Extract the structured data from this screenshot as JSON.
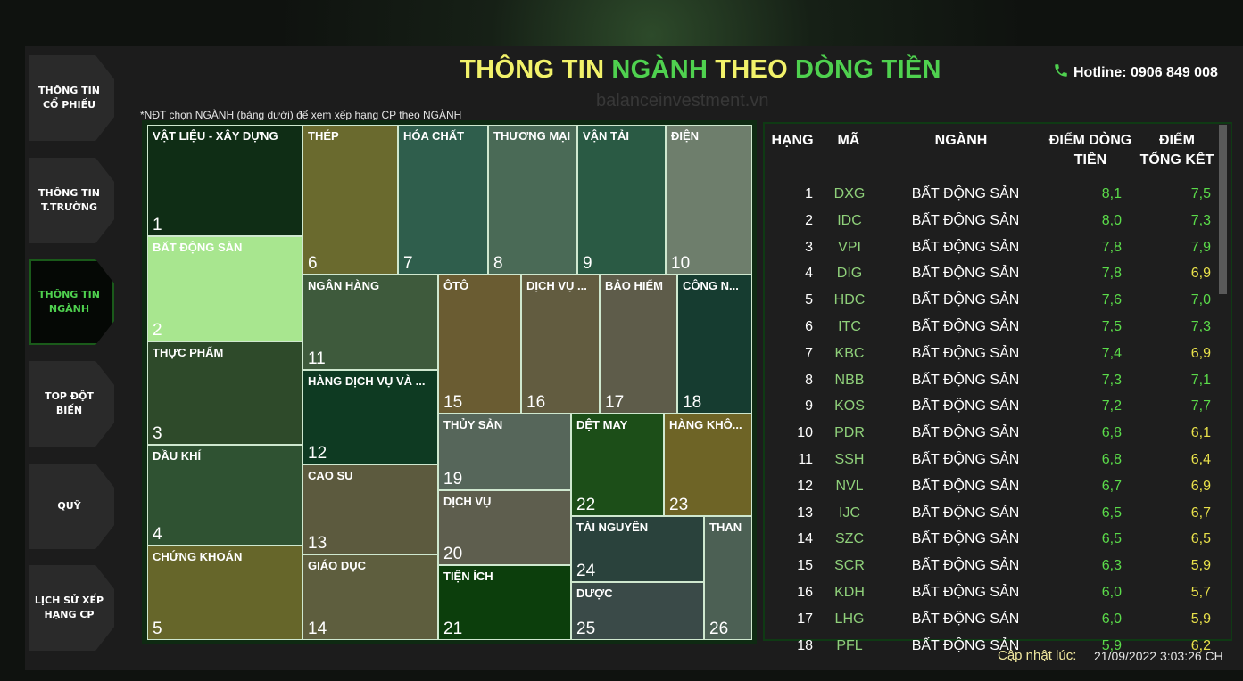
{
  "header": {
    "title_parts": [
      {
        "text": "THÔNG TIN",
        "color": "#f2f26a"
      },
      {
        "text": "NGÀNH",
        "color": "#4fd14f"
      },
      {
        "text": "THEO",
        "color": "#f2f26a"
      },
      {
        "text": "DÒNG TIỀN",
        "color": "#4fd14f"
      }
    ],
    "hotline": "Hotline: 0906 849 008",
    "watermark": "balanceinvestment.vn"
  },
  "sidebar": {
    "items": [
      {
        "label": "THÔNG TIN CỔ PHIẾU",
        "active": false
      },
      {
        "label": "THÔNG TIN T.TRƯỜNG",
        "active": false
      },
      {
        "label": "THÔNG TIN NGÀNH",
        "active": true
      },
      {
        "label": "TOP ĐỘT BIẾN",
        "active": false
      },
      {
        "label": "QUỸ",
        "active": false
      },
      {
        "label": "LỊCH SỬ XẾP HẠNG CP",
        "active": false
      }
    ]
  },
  "note": "*NĐT chọn NGÀNH (bảng dưới) để xem xếp hạng CP theo NGÀNH",
  "treemap": {
    "tiles": [
      {
        "label": "VẬT LIỆU - XÂY DỰNG",
        "rank": 1,
        "color": "#0f2d15"
      },
      {
        "label": "BẤT ĐỘNG SẢN",
        "rank": 2,
        "color": "#a8e68f"
      },
      {
        "label": "THỰC PHẨM",
        "rank": 3,
        "color": "#2e4a2a"
      },
      {
        "label": "DẦU KHÍ",
        "rank": 4,
        "color": "#2f5232"
      },
      {
        "label": "CHỨNG KHOÁN",
        "rank": 5,
        "color": "#66662a"
      },
      {
        "label": "THÉP",
        "rank": 6,
        "color": "#6a6a2e"
      },
      {
        "label": "HÓA CHẤT",
        "rank": 7,
        "color": "#2f5e4c"
      },
      {
        "label": "THƯƠNG MẠI",
        "rank": 8,
        "color": "#4a6a56"
      },
      {
        "label": "VẬN TẢI",
        "rank": 9,
        "color": "#2a5a44"
      },
      {
        "label": "ĐIỆN",
        "rank": 10,
        "color": "#6e7e6c"
      },
      {
        "label": "NGÂN HÀNG",
        "rank": 11,
        "color": "#3e5a3c"
      },
      {
        "label": "HÀNG DỊCH VỤ VÀ ...",
        "rank": 12,
        "color": "#0e3a22"
      },
      {
        "label": "CAO SU",
        "rank": 13,
        "color": "#5c5a3e"
      },
      {
        "label": "GIÁO DỤC",
        "rank": 14,
        "color": "#5e5e3e"
      },
      {
        "label": "ÔTÔ",
        "rank": 15,
        "color": "#6a5c32"
      },
      {
        "label": "DỊCH VỤ ...",
        "rank": 16,
        "color": "#625c40"
      },
      {
        "label": "BẢO HIỂM",
        "rank": 17,
        "color": "#5e5c4a"
      },
      {
        "label": "CÔNG N...",
        "rank": 18,
        "color": "#163c30"
      },
      {
        "label": "THỦY SẢN",
        "rank": 19,
        "color": "#56665a"
      },
      {
        "label": "DỊCH VỤ",
        "rank": 20,
        "color": "#5e5e4e"
      },
      {
        "label": "TIỆN ÍCH",
        "rank": 21,
        "color": "#0c3e0c"
      },
      {
        "label": "DỆT MAY",
        "rank": 22,
        "color": "#1c4e18"
      },
      {
        "label": "HÀNG KHÔ...",
        "rank": 23,
        "color": "#6e6426"
      },
      {
        "label": "TÀI NGUYÊN",
        "rank": 24,
        "color": "#2a423c"
      },
      {
        "label": "DƯỢC",
        "rank": 25,
        "color": "#3a4a48"
      },
      {
        "label": "THAN",
        "rank": 26,
        "color": "#4c6054"
      }
    ]
  },
  "table": {
    "columns": [
      "HẠNG",
      "MÃ",
      "NGÀNH",
      "ĐIỂM DÒNG TIỀN",
      "ĐIỂM TỔNG KẾT"
    ],
    "rows": [
      {
        "rank": "1",
        "code": "DXG",
        "sector": "BẤT ĐỘNG SẢN",
        "flow": "8,1",
        "total": "7,5",
        "total_color": "#5bdc4a"
      },
      {
        "rank": "2",
        "code": "IDC",
        "sector": "BẤT ĐỘNG SẢN",
        "flow": "8,0",
        "total": "7,3",
        "total_color": "#5bdc4a"
      },
      {
        "rank": "3",
        "code": "VPI",
        "sector": "BẤT ĐỘNG SẢN",
        "flow": "7,8",
        "total": "7,9",
        "total_color": "#5bdc4a"
      },
      {
        "rank": "4",
        "code": "DIG",
        "sector": "BẤT ĐỘNG SẢN",
        "flow": "7,8",
        "total": "6,9",
        "total_color": "#e8e04a"
      },
      {
        "rank": "5",
        "code": "HDC",
        "sector": "BẤT ĐỘNG SẢN",
        "flow": "7,6",
        "total": "7,0",
        "total_color": "#5bdc4a"
      },
      {
        "rank": "6",
        "code": "ITC",
        "sector": "BẤT ĐỘNG SẢN",
        "flow": "7,5",
        "total": "7,3",
        "total_color": "#5bdc4a"
      },
      {
        "rank": "7",
        "code": "KBC",
        "sector": "BẤT ĐỘNG SẢN",
        "flow": "7,4",
        "total": "6,9",
        "total_color": "#e8e04a"
      },
      {
        "rank": "8",
        "code": "NBB",
        "sector": "BẤT ĐỘNG SẢN",
        "flow": "7,3",
        "total": "7,1",
        "total_color": "#5bdc4a"
      },
      {
        "rank": "9",
        "code": "KOS",
        "sector": "BẤT ĐỘNG SẢN",
        "flow": "7,2",
        "total": "7,7",
        "total_color": "#5bdc4a"
      },
      {
        "rank": "10",
        "code": "PDR",
        "sector": "BẤT ĐỘNG SẢN",
        "flow": "6,8",
        "total": "6,1",
        "total_color": "#e8e04a"
      },
      {
        "rank": "11",
        "code": "SSH",
        "sector": "BẤT ĐỘNG SẢN",
        "flow": "6,8",
        "total": "6,4",
        "total_color": "#e8e04a"
      },
      {
        "rank": "12",
        "code": "NVL",
        "sector": "BẤT ĐỘNG SẢN",
        "flow": "6,7",
        "total": "6,9",
        "total_color": "#e8e04a"
      },
      {
        "rank": "13",
        "code": "IJC",
        "sector": "BẤT ĐỘNG SẢN",
        "flow": "6,5",
        "total": "6,7",
        "total_color": "#e8e04a"
      },
      {
        "rank": "14",
        "code": "SZC",
        "sector": "BẤT ĐỘNG SẢN",
        "flow": "6,5",
        "total": "6,5",
        "total_color": "#e8e04a"
      },
      {
        "rank": "15",
        "code": "SCR",
        "sector": "BẤT ĐỘNG SẢN",
        "flow": "6,3",
        "total": "5,9",
        "total_color": "#e8e04a"
      },
      {
        "rank": "16",
        "code": "KDH",
        "sector": "BẤT ĐỘNG SẢN",
        "flow": "6,0",
        "total": "5,7",
        "total_color": "#e8e04a"
      },
      {
        "rank": "17",
        "code": "LHG",
        "sector": "BẤT ĐỘNG SẢN",
        "flow": "6,0",
        "total": "5,9",
        "total_color": "#e8e04a"
      },
      {
        "rank": "18",
        "code": "PFL",
        "sector": "BẤT ĐỘNG SẢN",
        "flow": "5,9",
        "total": "6,2",
        "total_color": "#e8e04a"
      }
    ]
  },
  "footer": {
    "label": "Cập nhật lúc:",
    "timestamp": "21/09/2022 3:03:26 CH"
  }
}
